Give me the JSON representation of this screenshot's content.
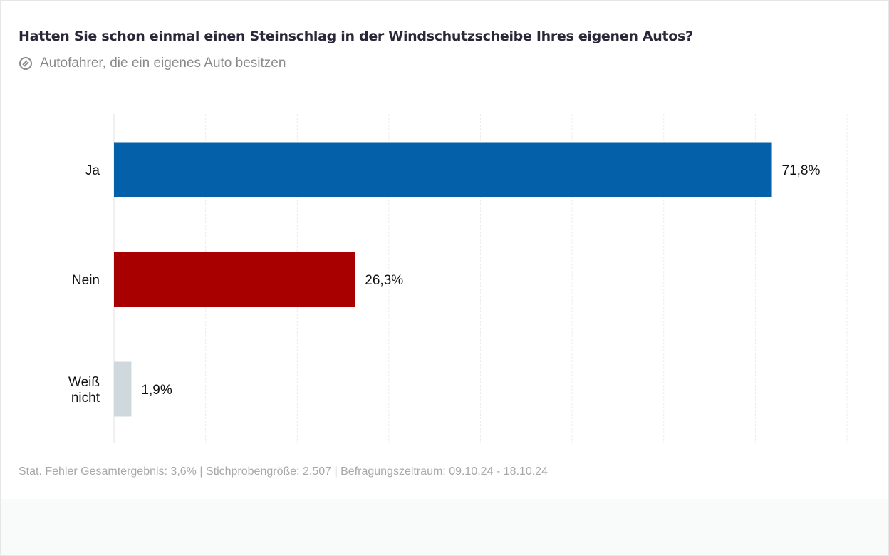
{
  "chart_data": {
    "type": "bar",
    "orientation": "horizontal",
    "title": "Hatten Sie schon einmal einen Steinschlag in der Windschutzscheibe Ihres eigenen Autos?",
    "subtitle": "Autofahrer, die ein eigenes Auto besitzen",
    "categories": [
      [
        "Ja"
      ],
      [
        "Nein"
      ],
      [
        "Weiß",
        "nicht"
      ]
    ],
    "values": [
      71.8,
      26.3,
      1.9
    ],
    "data_labels": [
      "71,8%",
      "26,3%",
      "1,9%"
    ],
    "colors": [
      "#0460a9",
      "#a80000",
      "#cfd8dc"
    ],
    "xlim": [
      0,
      80
    ],
    "grid_step": 10,
    "grid": true,
    "xlabel": "",
    "ylabel": ""
  },
  "footnote": "Stat. Fehler Gesamtergebnis: 3,6% | Stichprobengröße: 2.507 | Befragungszeitraum: 09.10.24 - 18.10.24",
  "subtitle_icon": "target-group-icon"
}
